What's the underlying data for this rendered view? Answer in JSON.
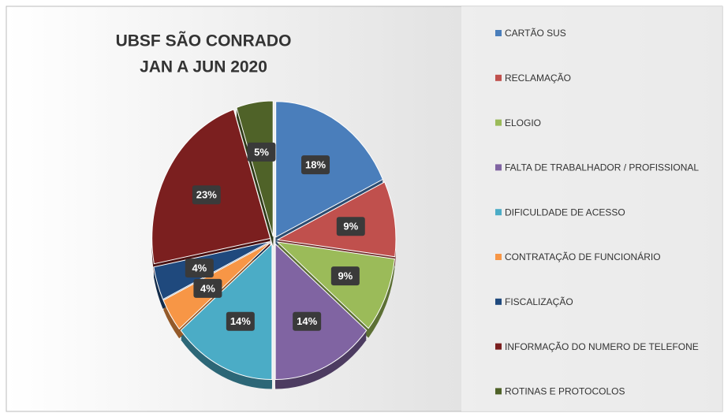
{
  "chart_data": {
    "type": "pie",
    "title": "UBSF SÃO CONRADO",
    "subtitle": "JAN A JUN 2020",
    "categories": [
      "CARTÃO SUS",
      "RECLAMAÇÃO",
      "ELOGIO",
      "FALTA DE TRABALHADOR / PROFISSIONAL",
      "DIFICULDADE DE ACESSO",
      "CONTRATAÇÃO DE FUNCIONÁRIO",
      "FISCALIZAÇÃO",
      "INFORMAÇÃO DO NUMERO DE TELEFONE",
      "ROTINAS E PROTOCOLOS"
    ],
    "values": [
      18,
      9,
      9,
      14,
      14,
      4,
      4,
      23,
      5
    ],
    "value_labels": [
      "18%",
      "9%",
      "9%",
      "14%",
      "14%",
      "4%",
      "4%",
      "23%",
      "5%"
    ],
    "colors": [
      "#4a7ebb",
      "#c0504d",
      "#9bbb59",
      "#8064a2",
      "#4bacc6",
      "#f79646",
      "#1f497d",
      "#7b1f1f",
      "#4f6228"
    ],
    "legend": "right"
  }
}
